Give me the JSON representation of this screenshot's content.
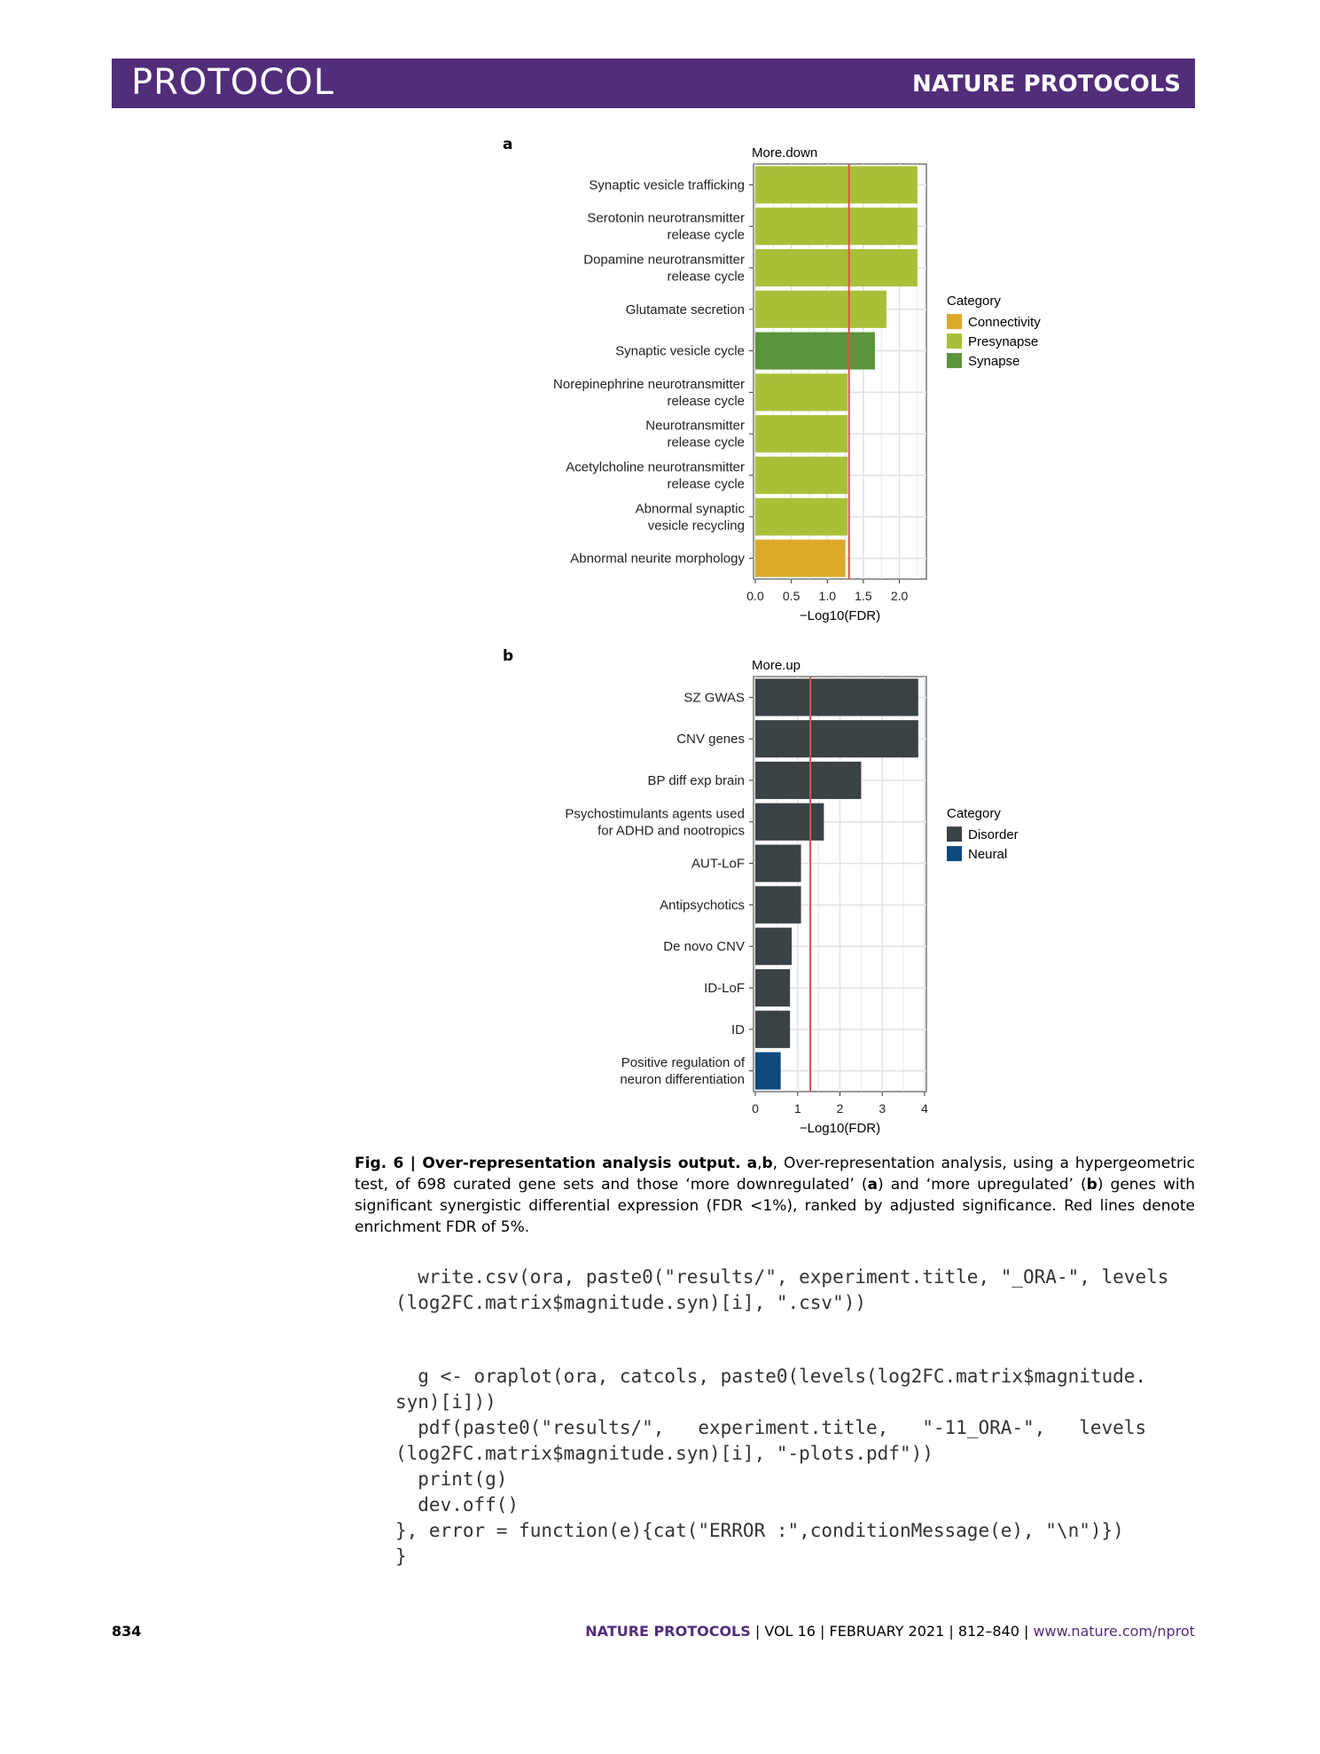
{
  "header": {
    "left": "PROTOCOL",
    "right": "NATURE PROTOCOLS"
  },
  "panels": {
    "a": "a",
    "b": "b"
  },
  "colors": {
    "banner": "#512d7a",
    "Connectivity": "#dcaa28",
    "Presynapse": "#a8c038",
    "Synapse": "#5a943c",
    "Disorder": "#3b4246",
    "Neural": "#0e4a7d",
    "threshold": "#e0504a"
  },
  "chart_data": [
    {
      "type": "bar",
      "orientation": "horizontal",
      "title": "More.down",
      "xlabel": "−Log10(FDR)",
      "xlim": [
        0,
        2.35
      ],
      "xticks": [
        "0.0",
        "0.5",
        "1.0",
        "1.5",
        "2.0"
      ],
      "xtick_values": [
        0,
        0.5,
        1.0,
        1.5,
        2.0
      ],
      "threshold": 1.3,
      "grid": true,
      "legend_title": "Category",
      "legend": [
        "Connectivity",
        "Presynapse",
        "Synapse"
      ],
      "legend_position": "right",
      "categories": [
        [
          "Synaptic vesicle trafficking"
        ],
        [
          "Serotonin neurotransmitter",
          "release cycle"
        ],
        [
          "Dopamine neurotransmitter",
          "release cycle"
        ],
        [
          "Glutamate secretion"
        ],
        [
          "Synaptic vesicle cycle"
        ],
        [
          "Norepinephrine neurotransmitter",
          "release cycle"
        ],
        [
          "Neurotransmitter",
          "release cycle"
        ],
        [
          "Acetylcholine neurotransmitter",
          "release cycle"
        ],
        [
          "Abnormal synaptic",
          "vesicle recycling"
        ],
        [
          "Abnormal neurite morphology"
        ]
      ],
      "values": [
        2.25,
        2.25,
        2.25,
        1.82,
        1.66,
        1.28,
        1.28,
        1.28,
        1.28,
        1.25
      ],
      "bar_category": [
        "Presynapse",
        "Presynapse",
        "Presynapse",
        "Presynapse",
        "Synapse",
        "Presynapse",
        "Presynapse",
        "Presynapse",
        "Presynapse",
        "Connectivity"
      ]
    },
    {
      "type": "bar",
      "orientation": "horizontal",
      "title": "More.up",
      "xlabel": "−Log10(FDR)",
      "xlim": [
        0,
        4.0
      ],
      "xticks": [
        "0",
        "1",
        "2",
        "3",
        "4"
      ],
      "xtick_values": [
        0,
        1,
        2,
        3,
        4
      ],
      "threshold": 1.3,
      "grid": true,
      "legend_title": "Category",
      "legend": [
        "Disorder",
        "Neural"
      ],
      "legend_position": "right",
      "categories": [
        [
          "SZ GWAS"
        ],
        [
          "CNV genes"
        ],
        [
          "BP diff exp brain"
        ],
        [
          "Psychostimulants agents used",
          "for ADHD and nootropics"
        ],
        [
          "AUT-LoF"
        ],
        [
          "Antipsychotics"
        ],
        [
          "De novo CNV"
        ],
        [
          "ID-LoF"
        ],
        [
          "ID"
        ],
        [
          "Positive regulation of",
          "neuron differentiation"
        ]
      ],
      "values": [
        3.85,
        3.85,
        2.5,
        1.62,
        1.08,
        1.08,
        0.86,
        0.82,
        0.82,
        0.6
      ],
      "bar_category": [
        "Disorder",
        "Disorder",
        "Disorder",
        "Disorder",
        "Disorder",
        "Disorder",
        "Disorder",
        "Disorder",
        "Disorder",
        "Neural"
      ]
    }
  ],
  "caption": {
    "fig": "Fig. 6 | Over-representation analysis output.",
    "panels": "a",
    "comma": ",",
    "panels2": "b",
    "text1": ", Over-representation analysis, using a hypergeometric test, of 698 curated gene sets and those ‘more downregulated’ (",
    "a": "a",
    "text2": ") and ‘more upregulated’ (",
    "b": "b",
    "text3": ") genes with significant synergistic differential expression (FDR <1%), ranked by adjusted significance. Red lines denote enrichment FDR of 5%."
  },
  "code": {
    "block1": "  write.csv(ora, paste0(\"results/\", experiment.title, \"_ORA-\", levels\n(log2FC.matrix$magnitude.syn)[i], \".csv\"))",
    "block2": "  g <- oraplot(ora, catcols, paste0(levels(log2FC.matrix$magnitude.\nsyn)[i]))\n  pdf(paste0(\"results/\",   experiment.title,   \"-11_ORA-\",   levels\n(log2FC.matrix$magnitude.syn)[i], \"-plots.pdf\"))\n  print(g)\n  dev.off()\n}, error = function(e){cat(\"ERROR :\",conditionMessage(e), \"\\n\")})\n}"
  },
  "footer": {
    "page": "834",
    "journal": "NATURE PROTOCOLS",
    "sep1": " | ",
    "vol": "VOL 16",
    "sep2": " | ",
    "date": "FEBRUARY 2021",
    "sep3": " | ",
    "pages": "812–840",
    "sep4": " | ",
    "url": "www.nature.com/nprot"
  }
}
